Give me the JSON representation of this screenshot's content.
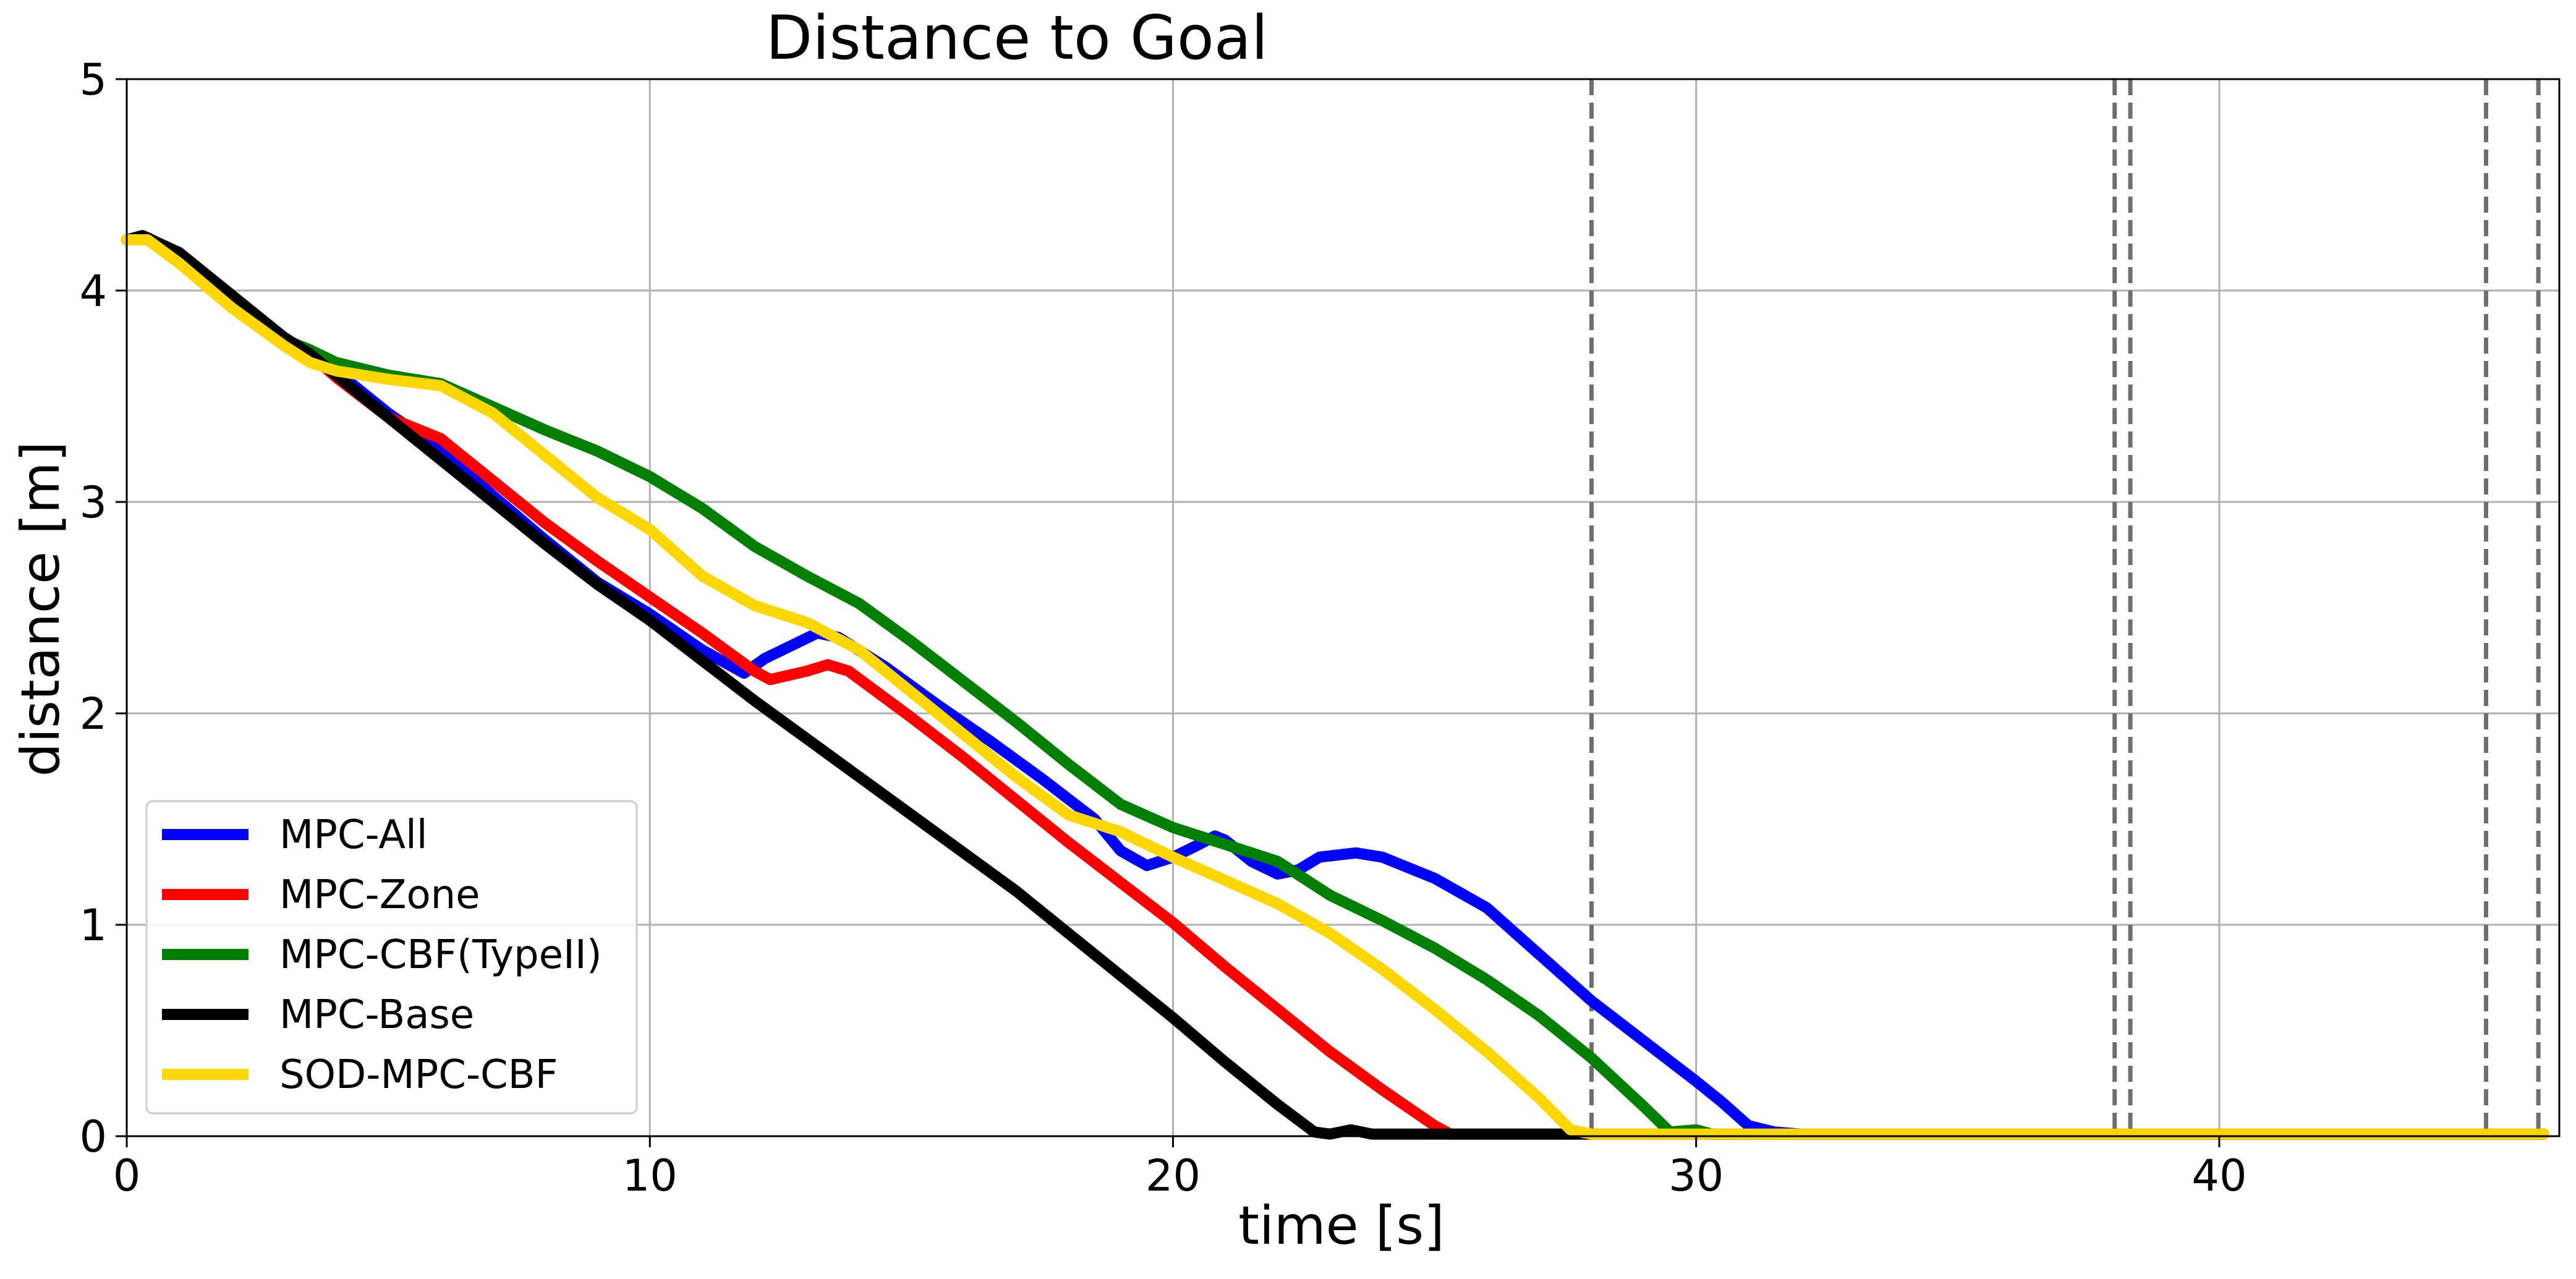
{
  "chart_data": {
    "type": "line",
    "title": "Distance to Goal",
    "xlabel": "time [s]",
    "ylabel": "distance [m]",
    "xlim": [
      0,
      46.5
    ],
    "ylim": [
      0,
      5
    ],
    "xticks": [
      0,
      10,
      20,
      30,
      40
    ],
    "yticks": [
      0,
      1,
      2,
      3,
      4,
      5
    ],
    "grid": true,
    "legend_position": "lower-left",
    "vlines": [
      28.0,
      38.0,
      38.3,
      45.1,
      46.1
    ],
    "vline_color": "#6e6e6e",
    "series": [
      {
        "name": "MPC-All",
        "color": "#0000ff",
        "x": [
          0,
          0.4,
          1,
          2,
          3,
          3.5,
          4,
          5,
          6,
          7,
          8,
          9,
          10,
          11,
          11.8,
          12.2,
          12.7,
          13.2,
          13.6,
          14.5,
          15.5,
          16.5,
          17.5,
          18.5,
          19,
          19.5,
          20,
          20.5,
          20.8,
          21,
          21.5,
          22,
          22.4,
          22.8,
          23.5,
          24,
          25,
          26,
          27,
          28,
          29,
          30,
          30.5,
          31,
          31.5,
          32,
          46.2
        ],
        "y": [
          4.24,
          4.25,
          4.17,
          3.97,
          3.77,
          3.7,
          3.62,
          3.42,
          3.25,
          3.03,
          2.82,
          2.62,
          2.47,
          2.3,
          2.19,
          2.26,
          2.32,
          2.38,
          2.36,
          2.22,
          2.04,
          1.87,
          1.69,
          1.5,
          1.35,
          1.28,
          1.32,
          1.38,
          1.42,
          1.4,
          1.3,
          1.24,
          1.26,
          1.32,
          1.34,
          1.32,
          1.22,
          1.08,
          0.86,
          0.64,
          0.45,
          0.26,
          0.16,
          0.05,
          0.02,
          0.01,
          0.01
        ]
      },
      {
        "name": "MPC-Zone",
        "color": "#ff0000",
        "x": [
          0,
          0.4,
          1,
          2,
          3,
          3.5,
          4,
          5,
          6,
          7,
          8,
          9,
          10,
          11,
          12,
          12.3,
          13,
          13.4,
          13.8,
          15,
          16,
          17,
          18,
          19,
          20,
          21,
          22,
          23,
          24,
          25,
          25.3,
          46.2
        ],
        "y": [
          4.24,
          4.25,
          4.17,
          3.97,
          3.77,
          3.7,
          3.59,
          3.4,
          3.3,
          3.1,
          2.9,
          2.72,
          2.55,
          2.38,
          2.2,
          2.16,
          2.2,
          2.23,
          2.2,
          1.98,
          1.79,
          1.59,
          1.39,
          1.2,
          1.01,
          0.8,
          0.6,
          0.4,
          0.22,
          0.05,
          0.01,
          0.01
        ]
      },
      {
        "name": "MPC-CBF(TypeII)",
        "color": "#008000",
        "x": [
          0,
          0.4,
          1,
          2,
          3,
          3.5,
          4,
          5,
          6,
          7,
          8,
          9,
          10,
          11,
          12,
          13,
          14,
          15,
          16,
          17,
          18,
          19,
          20,
          21,
          22,
          23,
          24,
          25,
          26,
          27,
          28,
          29,
          29.5,
          30,
          30.3,
          46.2
        ],
        "y": [
          4.24,
          4.25,
          4.17,
          3.97,
          3.77,
          3.72,
          3.66,
          3.6,
          3.56,
          3.45,
          3.34,
          3.24,
          3.12,
          2.97,
          2.79,
          2.65,
          2.52,
          2.34,
          2.15,
          1.96,
          1.76,
          1.57,
          1.46,
          1.38,
          1.3,
          1.14,
          1.02,
          0.89,
          0.74,
          0.57,
          0.37,
          0.14,
          0.02,
          0.03,
          0.01,
          0.01
        ]
      },
      {
        "name": "MPC-Base",
        "color": "#000000",
        "x": [
          0,
          0.3,
          1,
          2,
          3,
          3.5,
          4,
          5,
          6,
          7,
          8,
          9,
          10,
          11,
          12,
          13,
          14,
          15,
          16,
          17,
          18,
          19,
          20,
          21,
          22,
          22.7,
          23,
          23.4,
          23.8,
          24.5,
          46.2
        ],
        "y": [
          4.24,
          4.26,
          4.18,
          3.98,
          3.78,
          3.7,
          3.6,
          3.4,
          3.2,
          3.0,
          2.8,
          2.61,
          2.44,
          2.25,
          2.06,
          1.88,
          1.7,
          1.52,
          1.34,
          1.16,
          0.96,
          0.76,
          0.56,
          0.35,
          0.15,
          0.02,
          0.01,
          0.03,
          0.01,
          0.01,
          0.01
        ]
      },
      {
        "name": "SOD-MPC-CBF",
        "color": "#ffd700",
        "x": [
          0,
          0.4,
          1,
          2,
          3,
          3.5,
          4,
          5,
          6,
          7,
          8,
          9,
          10,
          11,
          12,
          13,
          14,
          15,
          16,
          17,
          18,
          19,
          20,
          21,
          22,
          23,
          24,
          25,
          26,
          27,
          27.6,
          28,
          46.2
        ],
        "y": [
          4.24,
          4.24,
          4.13,
          3.92,
          3.74,
          3.66,
          3.62,
          3.58,
          3.55,
          3.42,
          3.22,
          3.02,
          2.87,
          2.65,
          2.51,
          2.43,
          2.3,
          2.1,
          1.9,
          1.7,
          1.52,
          1.44,
          1.32,
          1.21,
          1.1,
          0.96,
          0.79,
          0.6,
          0.4,
          0.18,
          0.03,
          0.01,
          0.01
        ]
      }
    ]
  }
}
